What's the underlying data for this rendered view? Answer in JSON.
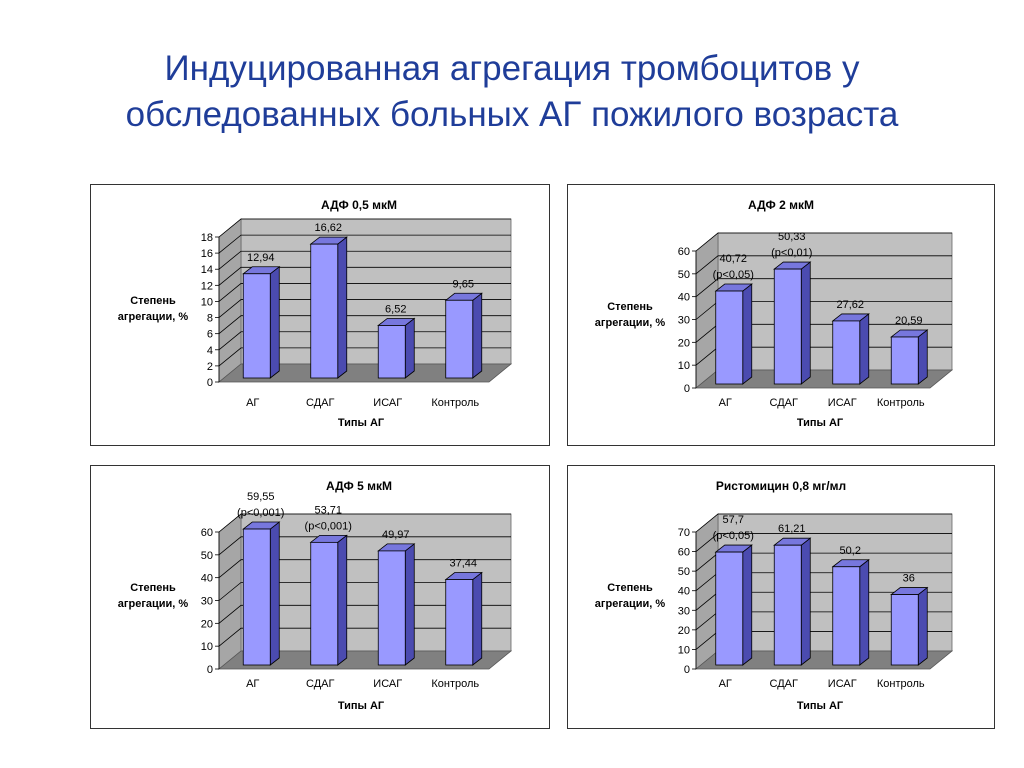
{
  "slide": {
    "title_line1": "Индуцированная агрегация тромбоцитов у",
    "title_line2": "обследованных больных АГ пожилого возраста"
  },
  "colors": {
    "title": "#1f3d99",
    "bar_front": "#9999ff",
    "bar_side": "#4b4bb0",
    "bar_top": "#7777dd",
    "wall": "#c0c0c0",
    "floor": "#808080"
  },
  "chart_data": [
    {
      "type": "bar",
      "title": "АДФ 0,5 мкМ",
      "xlabel": "Типы АГ",
      "ylabel_line1": "Степень",
      "ylabel_line2": "агрегации, %",
      "categories": [
        "АГ",
        "СДАГ",
        "ИСАГ",
        "Контроль"
      ],
      "values": [
        12.94,
        16.62,
        6.52,
        9.65
      ],
      "value_labels": [
        [
          "12,94"
        ],
        [
          "16,62"
        ],
        [
          "6,52"
        ],
        [
          "9,65"
        ]
      ],
      "ylim": [
        0,
        18
      ],
      "yticks": [
        0,
        2,
        4,
        6,
        8,
        10,
        12,
        14,
        16,
        18
      ],
      "grid": true
    },
    {
      "type": "bar",
      "title": "АДФ 2 мкМ",
      "xlabel": "Типы АГ",
      "ylabel_line1": "Степень",
      "ylabel_line2": "агрегации, %",
      "categories": [
        "АГ",
        "СДАГ",
        "ИСАГ",
        "Контроль"
      ],
      "values": [
        40.72,
        50.33,
        27.62,
        20.59
      ],
      "value_labels": [
        [
          "40,72",
          "(p<0,05)"
        ],
        [
          "50,33",
          "(p<0,01)"
        ],
        [
          "27,62"
        ],
        [
          "20,59"
        ]
      ],
      "ylim": [
        0,
        60
      ],
      "yticks": [
        0,
        10,
        20,
        30,
        40,
        50,
        60
      ],
      "grid": true
    },
    {
      "type": "bar",
      "title": "АДФ 5 мкМ",
      "xlabel": "Типы АГ",
      "ylabel_line1": "Степень",
      "ylabel_line2": "агрегации, %",
      "categories": [
        "АГ",
        "СДАГ",
        "ИСАГ",
        "Контроль"
      ],
      "values": [
        59.55,
        53.71,
        49.97,
        37.44
      ],
      "value_labels": [
        [
          "59,55",
          "(p<0,001)"
        ],
        [
          "53,71",
          "(p<0,001)"
        ],
        [
          "49,97"
        ],
        [
          "37,44"
        ]
      ],
      "ylim": [
        0,
        60
      ],
      "yticks": [
        0,
        10,
        20,
        30,
        40,
        50,
        60
      ],
      "grid": true
    },
    {
      "type": "bar",
      "title": "Ристомицин 0,8 мг/мл",
      "xlabel": "Типы АГ",
      "ylabel_line1": "Степень",
      "ylabel_line2": "агрегации, %",
      "categories": [
        "АГ",
        "СДАГ",
        "ИСАГ",
        "Контроль"
      ],
      "values": [
        57.7,
        61.21,
        50.2,
        36
      ],
      "value_labels": [
        [
          "57,7",
          "(p<0,05)"
        ],
        [
          "61,21"
        ],
        [
          "50,2"
        ],
        [
          "36"
        ]
      ],
      "ylim": [
        0,
        70
      ],
      "yticks": [
        0,
        10,
        20,
        30,
        40,
        50,
        60,
        70
      ],
      "grid": true
    }
  ]
}
